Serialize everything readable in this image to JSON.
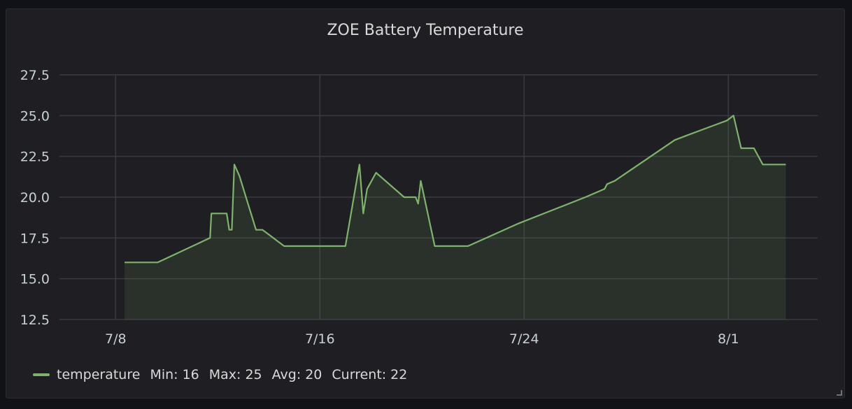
{
  "panel": {
    "title": "ZOE Battery Temperature"
  },
  "chart_data": {
    "type": "area",
    "title": "ZOE Battery Temperature",
    "xlabel": "",
    "ylabel": "",
    "x_tick_labels": [
      "7/8",
      "7/16",
      "7/24",
      "8/1"
    ],
    "x_tick_days": [
      0,
      8,
      16,
      24
    ],
    "xlim_days": [
      -2.2,
      27.5
    ],
    "y_ticks": [
      12.5,
      15.0,
      17.5,
      20.0,
      22.5,
      25.0,
      27.5
    ],
    "y_tick_labels": [
      "12.5",
      "15.0",
      "17.5",
      "20.0",
      "22.5",
      "25.0",
      "27.5"
    ],
    "ylim": [
      12.5,
      27.5
    ],
    "grid": true,
    "legend_position": "bottom-left",
    "series": [
      {
        "name": "temperature",
        "color": "#7eb26d",
        "x_days": [
          0.35,
          1.65,
          3.7,
          3.75,
          3.9,
          4.35,
          4.45,
          4.55,
          4.65,
          4.85,
          5.5,
          5.75,
          6.6,
          7.4,
          8.35,
          9.0,
          9.55,
          9.7,
          9.85,
          10.2,
          11.3,
          11.75,
          11.85,
          11.95,
          12.5,
          13.8,
          15.8,
          18.4,
          19.15,
          19.25,
          19.55,
          21.9,
          22.4,
          23.95,
          24.2,
          24.5,
          25.0,
          25.35,
          25.55,
          26.25
        ],
        "values": [
          16,
          16,
          17.5,
          19,
          19,
          19,
          18,
          18,
          22,
          21.3,
          18,
          18,
          17,
          17,
          17,
          17,
          22,
          19,
          20.5,
          21.5,
          20,
          20,
          19.6,
          21,
          17,
          17,
          18.4,
          20,
          20.5,
          20.8,
          21,
          23.5,
          23.8,
          24.7,
          25,
          23,
          23,
          22,
          22,
          22
        ]
      }
    ],
    "legend_stats": {
      "min": "16",
      "max": "25",
      "avg": "20",
      "current": "22"
    }
  },
  "legend": {
    "series_label": "temperature",
    "min_key": "Min:",
    "min_value": "16",
    "max_key": "Max:",
    "max_value": "25",
    "avg_key": "Avg:",
    "avg_value": "20",
    "current_key": "Current:",
    "current_value": "22"
  }
}
